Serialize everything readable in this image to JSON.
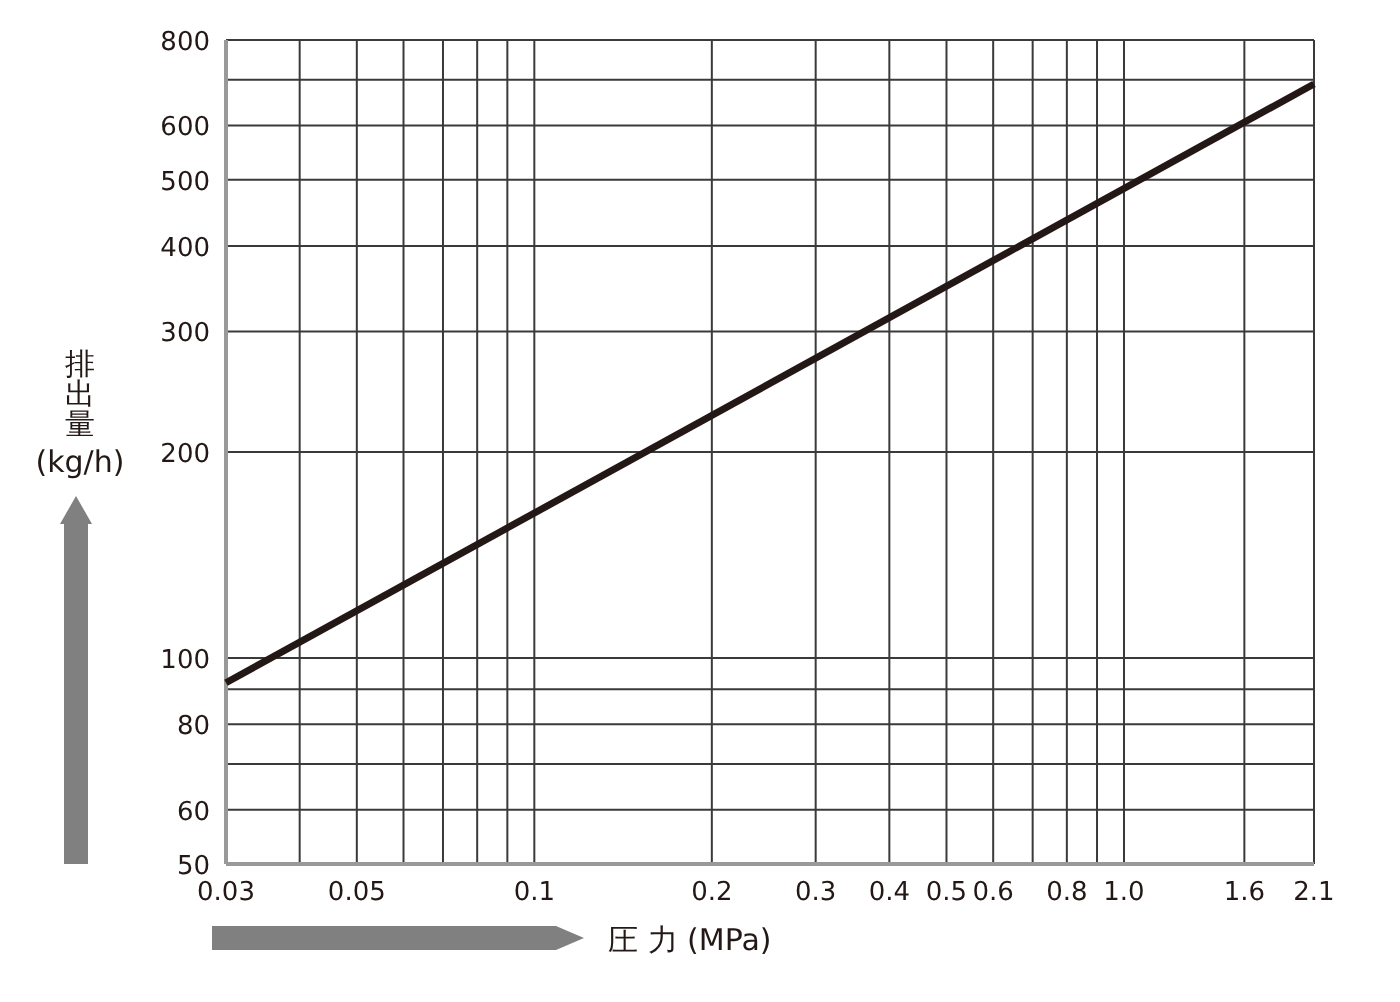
{
  "chart_data": {
    "type": "line",
    "xlabel": "圧 力 (MPa)",
    "ylabel": "排出量 (kg/h)",
    "log": "xy",
    "grid": true,
    "xlim": [
      0.03,
      2.1
    ],
    "ylim": [
      50,
      800
    ],
    "xticks": [
      0.03,
      {
        "value": 0.04,
        "label": null
      },
      0.05,
      {
        "value": 0.06,
        "label": null
      },
      {
        "value": 0.07,
        "label": null
      },
      {
        "value": 0.08,
        "label": null
      },
      {
        "value": 0.09,
        "label": null
      },
      0.1,
      0.2,
      0.3,
      0.4,
      0.5,
      0.6,
      {
        "value": 0.7,
        "label": null
      },
      0.8,
      {
        "value": 0.9,
        "label": null
      },
      {
        "value": 1.0,
        "label": "1.0"
      },
      1.6,
      2.1
    ],
    "yticks": [
      50,
      60,
      {
        "value": 70,
        "label": null
      },
      80,
      {
        "value": 90,
        "label": null
      },
      100,
      200,
      300,
      400,
      500,
      600,
      {
        "value": 700,
        "label": null
      },
      800
    ],
    "series": [
      {
        "color": "#231815",
        "x": [
          0.03,
          2.1
        ],
        "values": [
          92,
          690
        ]
      }
    ]
  }
}
